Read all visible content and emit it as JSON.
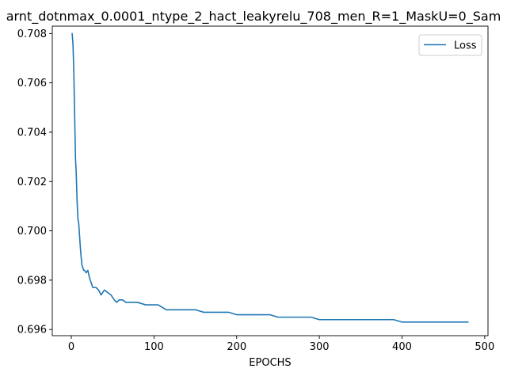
{
  "chart_data": {
    "type": "line",
    "title": "arnt_dotnmax_0.0001_ntype_2_hact_leakyrelu_708_men_R=1_MaskU=0_Sam",
    "xlabel": "EPOCHS",
    "ylabel": "",
    "xlim": [
      -23,
      504
    ],
    "ylim": [
      0.69575,
      0.7083
    ],
    "xticks": [
      0,
      100,
      200,
      300,
      400,
      500
    ],
    "yticks": [
      0.696,
      0.698,
      0.7,
      0.702,
      0.704,
      0.706,
      0.708
    ],
    "ytick_labels": [
      "0.696",
      "0.698",
      "0.700",
      "0.702",
      "0.704",
      "0.706",
      "0.708"
    ],
    "grid": false,
    "legend_position": "upper right",
    "series": [
      {
        "name": "Loss",
        "color": "#1f77b4",
        "x": [
          1,
          2,
          3,
          4,
          5,
          6,
          7,
          8,
          9,
          10,
          11,
          12,
          13,
          14,
          15,
          16,
          18,
          20,
          22,
          24,
          26,
          28,
          30,
          33,
          36,
          40,
          44,
          48,
          52,
          55,
          58,
          62,
          66,
          70,
          75,
          80,
          90,
          100,
          105,
          110,
          115,
          120,
          130,
          138,
          145,
          150,
          160,
          170,
          180,
          190,
          200,
          210,
          220,
          230,
          240,
          250,
          260,
          270,
          280,
          290,
          300,
          310,
          320,
          330,
          340,
          350,
          360,
          370,
          380,
          390,
          400,
          410,
          420,
          430,
          440,
          450,
          460,
          470,
          480
        ],
        "y": [
          0.708,
          0.7076,
          0.7065,
          0.7048,
          0.703,
          0.7023,
          0.7012,
          0.7005,
          0.7003,
          0.6998,
          0.6993,
          0.6989,
          0.6986,
          0.6985,
          0.6984,
          0.6984,
          0.6983,
          0.6984,
          0.6981,
          0.6979,
          0.6977,
          0.6977,
          0.6977,
          0.6976,
          0.6974,
          0.6976,
          0.6975,
          0.6974,
          0.6972,
          0.6971,
          0.6972,
          0.6972,
          0.6971,
          0.6971,
          0.6971,
          0.6971,
          0.697,
          0.697,
          0.697,
          0.6969,
          0.6968,
          0.6968,
          0.6968,
          0.6968,
          0.6968,
          0.6968,
          0.6967,
          0.6967,
          0.6967,
          0.6967,
          0.6966,
          0.6966,
          0.6966,
          0.6966,
          0.6966,
          0.6965,
          0.6965,
          0.6965,
          0.6965,
          0.6965,
          0.6964,
          0.6964,
          0.6964,
          0.6964,
          0.6964,
          0.6964,
          0.6964,
          0.6964,
          0.6964,
          0.6964,
          0.6963,
          0.6963,
          0.6963,
          0.6963,
          0.6963,
          0.6963,
          0.6963,
          0.6963,
          0.6963
        ]
      }
    ]
  }
}
